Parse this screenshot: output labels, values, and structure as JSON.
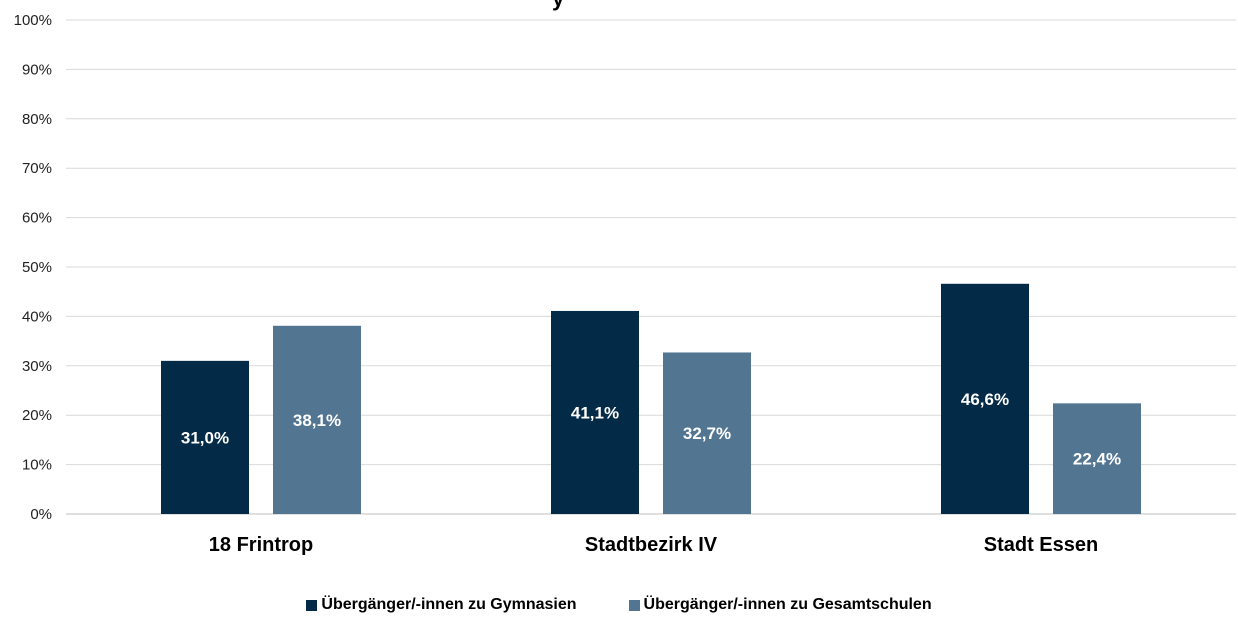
{
  "chart_data": {
    "type": "bar",
    "categories": [
      "18 Frintrop",
      "Stadtbezirk IV",
      "Stadt Essen"
    ],
    "series": [
      {
        "name": "Übergänger/-innen zu Gymnasien",
        "values": [
          31.0,
          41.1,
          46.6
        ],
        "labels": [
          "31,0%",
          "41,1%",
          "46,6%"
        ],
        "color": "#032a47"
      },
      {
        "name": "Übergänger/-innen zu Gesamtschulen",
        "values": [
          38.1,
          32.7,
          22.4
        ],
        "labels": [
          "38,1%",
          "32,7%",
          "22,4%"
        ],
        "color": "#527592"
      }
    ],
    "ylim": [
      0,
      100
    ],
    "yticks": [
      "0%",
      "10%",
      "20%",
      "30%",
      "40%",
      "50%",
      "60%",
      "70%",
      "80%",
      "90%",
      "100%"
    ],
    "grid": true,
    "legend_position": "bottom",
    "title_partial": "y"
  }
}
